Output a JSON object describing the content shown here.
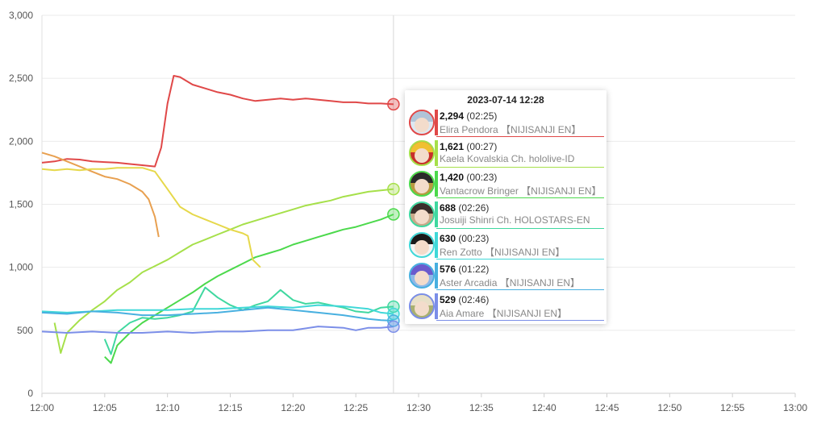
{
  "chart_data": {
    "type": "line",
    "ylim": [
      0,
      3000
    ],
    "y_ticks": [
      "0",
      "500",
      "1,000",
      "1,500",
      "2,000",
      "2,500",
      "3,000"
    ],
    "x_ticks": [
      "12:00",
      "12:05",
      "12:10",
      "12:15",
      "12:20",
      "12:25",
      "12:30",
      "12:35",
      "12:40",
      "12:45",
      "12:50",
      "12:55",
      "13:00"
    ],
    "grid": true,
    "cursor_time": "12:28",
    "series": [
      {
        "name": "Elira Pendora 【NIJISANJI EN】",
        "color": "#e04848",
        "points": [
          [
            0,
            1830
          ],
          [
            1,
            1840
          ],
          [
            2,
            1860
          ],
          [
            3,
            1855
          ],
          [
            4,
            1840
          ],
          [
            5,
            1835
          ],
          [
            6,
            1830
          ],
          [
            7,
            1820
          ],
          [
            8,
            1810
          ],
          [
            9,
            1800
          ],
          [
            9.5,
            1950
          ],
          [
            10,
            2300
          ],
          [
            10.5,
            2520
          ],
          [
            11,
            2510
          ],
          [
            12,
            2450
          ],
          [
            13,
            2420
          ],
          [
            14,
            2390
          ],
          [
            15,
            2370
          ],
          [
            16,
            2340
          ],
          [
            17,
            2320
          ],
          [
            18,
            2330
          ],
          [
            19,
            2340
          ],
          [
            20,
            2330
          ],
          [
            21,
            2340
          ],
          [
            22,
            2330
          ],
          [
            23,
            2320
          ],
          [
            24,
            2310
          ],
          [
            25,
            2310
          ],
          [
            26,
            2300
          ],
          [
            27,
            2300
          ],
          [
            28,
            2294
          ]
        ]
      },
      {
        "name": "Kaela Kovalskia Ch. hololive-ID",
        "color": "#a6e04a",
        "points": [
          [
            1,
            560
          ],
          [
            1.5,
            320
          ],
          [
            2,
            480
          ],
          [
            3,
            580
          ],
          [
            4,
            660
          ],
          [
            5,
            730
          ],
          [
            6,
            820
          ],
          [
            7,
            880
          ],
          [
            8,
            960
          ],
          [
            9,
            1010
          ],
          [
            10,
            1060
          ],
          [
            11,
            1120
          ],
          [
            12,
            1180
          ],
          [
            13,
            1220
          ],
          [
            14,
            1260
          ],
          [
            15,
            1300
          ],
          [
            16,
            1340
          ],
          [
            17,
            1370
          ],
          [
            18,
            1400
          ],
          [
            19,
            1430
          ],
          [
            20,
            1460
          ],
          [
            21,
            1490
          ],
          [
            22,
            1510
          ],
          [
            23,
            1530
          ],
          [
            24,
            1560
          ],
          [
            25,
            1580
          ],
          [
            26,
            1600
          ],
          [
            27,
            1610
          ],
          [
            28,
            1621
          ]
        ]
      },
      {
        "name": "Vantacrow Bringer 【NIJISANJI EN】",
        "color": "#4cd94c",
        "points": [
          [
            5,
            290
          ],
          [
            5.5,
            240
          ],
          [
            6,
            380
          ],
          [
            7,
            480
          ],
          [
            8,
            560
          ],
          [
            9,
            620
          ],
          [
            10,
            680
          ],
          [
            11,
            740
          ],
          [
            12,
            800
          ],
          [
            13,
            870
          ],
          [
            14,
            930
          ],
          [
            15,
            980
          ],
          [
            16,
            1030
          ],
          [
            17,
            1080
          ],
          [
            18,
            1110
          ],
          [
            19,
            1140
          ],
          [
            20,
            1180
          ],
          [
            21,
            1210
          ],
          [
            22,
            1240
          ],
          [
            23,
            1270
          ],
          [
            24,
            1300
          ],
          [
            25,
            1320
          ],
          [
            26,
            1350
          ],
          [
            27,
            1380
          ],
          [
            28,
            1420
          ]
        ]
      },
      {
        "name": "Josuiji Shinri Ch. HOLOSTARS-EN",
        "color": "#40d8a0",
        "points": [
          [
            5,
            430
          ],
          [
            5.5,
            310
          ],
          [
            6,
            480
          ],
          [
            7,
            560
          ],
          [
            8,
            600
          ],
          [
            9,
            590
          ],
          [
            10,
            600
          ],
          [
            11,
            620
          ],
          [
            12,
            650
          ],
          [
            13,
            840
          ],
          [
            14,
            760
          ],
          [
            15,
            700
          ],
          [
            16,
            660
          ],
          [
            17,
            700
          ],
          [
            18,
            730
          ],
          [
            19,
            820
          ],
          [
            20,
            740
          ],
          [
            21,
            710
          ],
          [
            22,
            720
          ],
          [
            23,
            700
          ],
          [
            24,
            680
          ],
          [
            25,
            650
          ],
          [
            26,
            640
          ],
          [
            27,
            680
          ],
          [
            28,
            688
          ]
        ]
      },
      {
        "name": "Ren Zotto 【NIJISANJI EN】",
        "color": "#40d8d8",
        "points": [
          [
            0,
            650
          ],
          [
            2,
            640
          ],
          [
            4,
            650
          ],
          [
            6,
            660
          ],
          [
            8,
            660
          ],
          [
            10,
            660
          ],
          [
            12,
            670
          ],
          [
            14,
            670
          ],
          [
            16,
            680
          ],
          [
            18,
            690
          ],
          [
            20,
            680
          ],
          [
            22,
            700
          ],
          [
            24,
            690
          ],
          [
            26,
            670
          ],
          [
            27,
            640
          ],
          [
            28,
            630
          ]
        ]
      },
      {
        "name": "Aster Arcadia 【NIJISANJI EN】",
        "color": "#48b0e0",
        "points": [
          [
            0,
            640
          ],
          [
            2,
            630
          ],
          [
            4,
            650
          ],
          [
            6,
            640
          ],
          [
            8,
            620
          ],
          [
            10,
            620
          ],
          [
            12,
            630
          ],
          [
            14,
            640
          ],
          [
            16,
            660
          ],
          [
            18,
            680
          ],
          [
            20,
            660
          ],
          [
            22,
            640
          ],
          [
            24,
            620
          ],
          [
            26,
            590
          ],
          [
            27,
            580
          ],
          [
            28,
            576
          ]
        ]
      },
      {
        "name": "Aia Amare 【NIJISANJI EN】",
        "color": "#7b8ee8",
        "points": [
          [
            0,
            490
          ],
          [
            2,
            480
          ],
          [
            4,
            490
          ],
          [
            6,
            480
          ],
          [
            8,
            480
          ],
          [
            10,
            490
          ],
          [
            12,
            480
          ],
          [
            14,
            490
          ],
          [
            16,
            490
          ],
          [
            18,
            500
          ],
          [
            20,
            500
          ],
          [
            22,
            530
          ],
          [
            24,
            520
          ],
          [
            25,
            500
          ],
          [
            26,
            520
          ],
          [
            27,
            520
          ],
          [
            28,
            529
          ]
        ]
      },
      {
        "name": "",
        "color": "#e8a050",
        "points": [
          [
            0,
            1910
          ],
          [
            1,
            1880
          ],
          [
            2,
            1840
          ],
          [
            3,
            1800
          ],
          [
            4,
            1760
          ],
          [
            5,
            1720
          ],
          [
            6,
            1700
          ],
          [
            7,
            1660
          ],
          [
            8,
            1600
          ],
          [
            8.5,
            1540
          ],
          [
            9,
            1400
          ],
          [
            9.3,
            1240
          ]
        ]
      },
      {
        "name": "",
        "color": "#e6d84a",
        "points": [
          [
            0,
            1780
          ],
          [
            1,
            1770
          ],
          [
            2,
            1780
          ],
          [
            3,
            1770
          ],
          [
            4,
            1780
          ],
          [
            5,
            1780
          ],
          [
            6,
            1790
          ],
          [
            7,
            1790
          ],
          [
            8,
            1790
          ],
          [
            9,
            1760
          ],
          [
            10,
            1620
          ],
          [
            11,
            1480
          ],
          [
            12,
            1420
          ],
          [
            13,
            1380
          ],
          [
            14,
            1340
          ],
          [
            15,
            1300
          ],
          [
            16,
            1270
          ],
          [
            16.4,
            1250
          ],
          [
            16.8,
            1060
          ],
          [
            17.4,
            1000
          ]
        ]
      }
    ]
  },
  "tooltip": {
    "title": "2023-07-14 12:28",
    "rows": [
      {
        "value": "2,294",
        "time": "(02:25)",
        "name": "Elira Pendora 【NIJISANJI EN】",
        "color": "#e04848",
        "avatar_hair": "#b0c4d8",
        "avatar_bg": "#dde8f2"
      },
      {
        "value": "1,621",
        "time": "(00:27)",
        "name": "Kaela Kovalskia Ch. hololive-ID",
        "color": "#a6e04a",
        "avatar_hair": "#f0c030",
        "avatar_bg": "#c8302c"
      },
      {
        "value": "1,420",
        "time": "(00:23)",
        "name": "Vantacrow Bringer 【NIJISANJI EN】",
        "color": "#4cd94c",
        "avatar_hair": "#2a2a2a",
        "avatar_bg": "#b89a40"
      },
      {
        "value": "688",
        "time": "(02:26)",
        "name": "Josuiji Shinri Ch. HOLOSTARS-EN",
        "color": "#40d8a0",
        "avatar_hair": "#3a2e2a",
        "avatar_bg": "#c9a98a"
      },
      {
        "value": "630",
        "time": "(00:23)",
        "name": "Ren Zotto 【NIJISANJI EN】",
        "color": "#40d8d8",
        "avatar_hair": "#1a1a1a",
        "avatar_bg": "#f4f4f4"
      },
      {
        "value": "576",
        "time": "(01:22)",
        "name": "Aster Arcadia 【NIJISANJI EN】",
        "color": "#48b0e0",
        "avatar_hair": "#6a5acd",
        "avatar_bg": "#8fb8e8"
      },
      {
        "value": "529",
        "time": "(02:46)",
        "name": "Aia Amare 【NIJISANJI EN】",
        "color": "#7b8ee8",
        "avatar_hair": "#e8e0c8",
        "avatar_bg": "#a8b070"
      }
    ]
  }
}
